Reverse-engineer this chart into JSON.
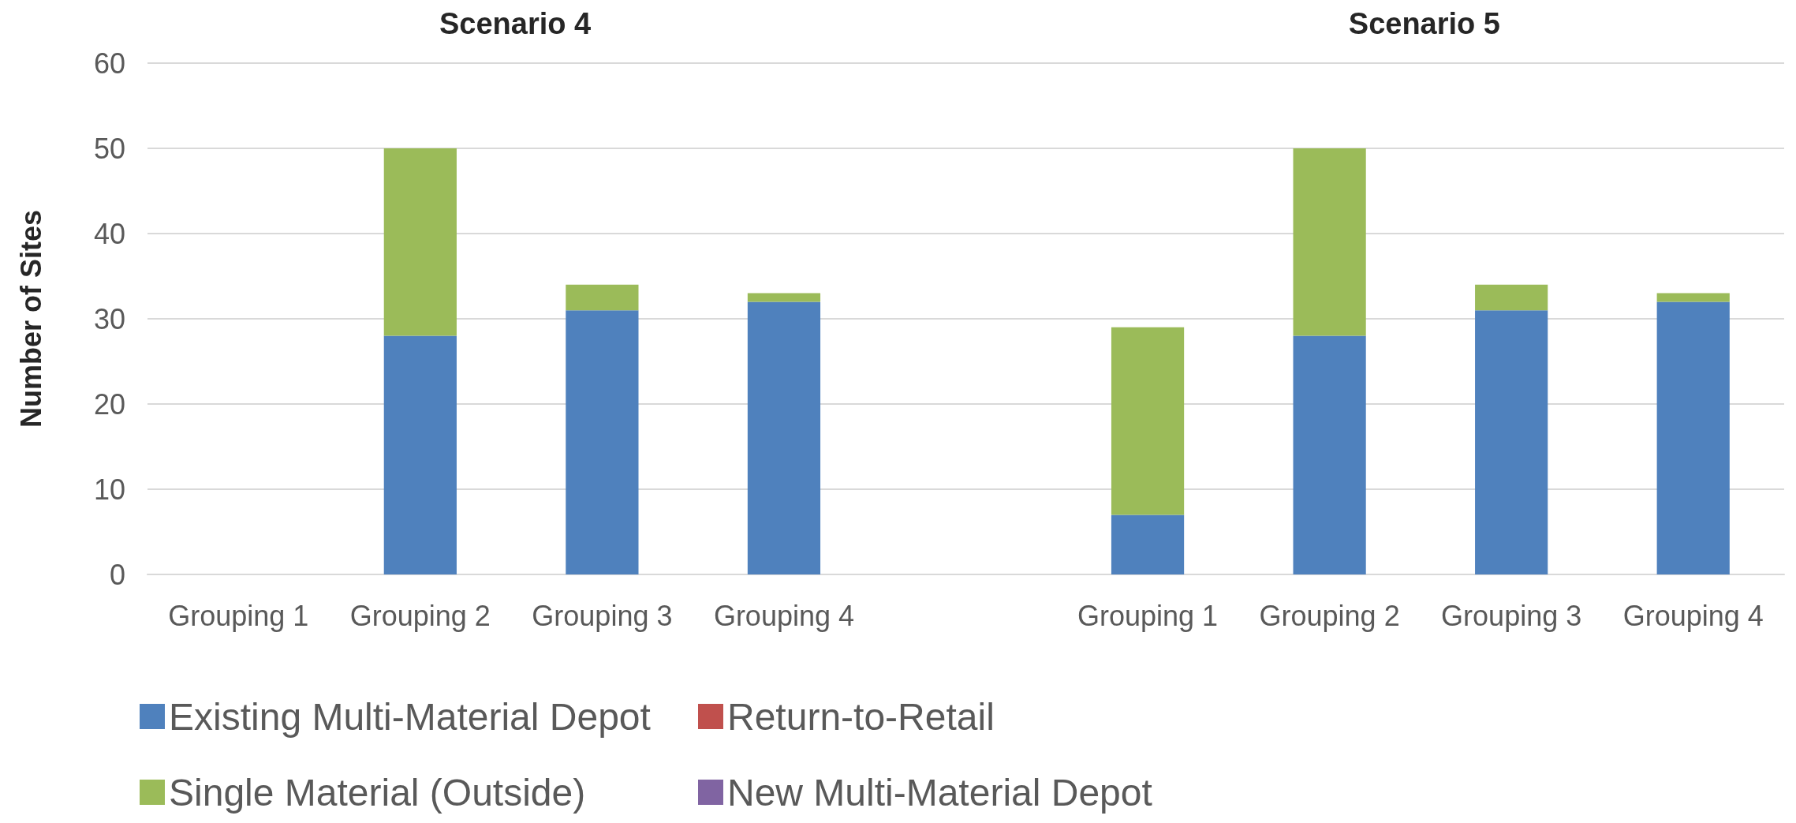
{
  "chart_data": {
    "type": "bar",
    "stacked": true,
    "categories": [
      "Grouping 1",
      "Grouping 2",
      "Grouping 3",
      "Grouping 4",
      null,
      "Grouping 1",
      "Grouping 2",
      "Grouping 3",
      "Grouping 4"
    ],
    "series": [
      {
        "name": "Existing Multi-Material Depot",
        "color": "#4f81bd",
        "values": [
          0,
          28,
          31,
          32,
          null,
          7,
          28,
          31,
          32
        ]
      },
      {
        "name": "Return-to-Retail",
        "color": "#c0504d",
        "values": [
          0,
          0,
          0,
          0,
          null,
          0,
          0,
          0,
          0
        ]
      },
      {
        "name": "Single Material (Outside)",
        "color": "#9bbb59",
        "values": [
          0,
          22,
          3,
          1,
          null,
          22,
          22,
          3,
          1
        ]
      },
      {
        "name": "New Multi-Material Depot",
        "color": "#8064a2",
        "values": [
          0,
          0,
          0,
          0,
          null,
          0,
          0,
          0,
          0
        ]
      }
    ],
    "ylabel": "Number of Sites",
    "ylim": [
      0,
      60
    ],
    "yticks": [
      0,
      10,
      20,
      30,
      40,
      50,
      60
    ],
    "annotations": [
      "Scenario 4",
      "Scenario 5"
    ],
    "grid": "y",
    "legend": "bottom left"
  }
}
